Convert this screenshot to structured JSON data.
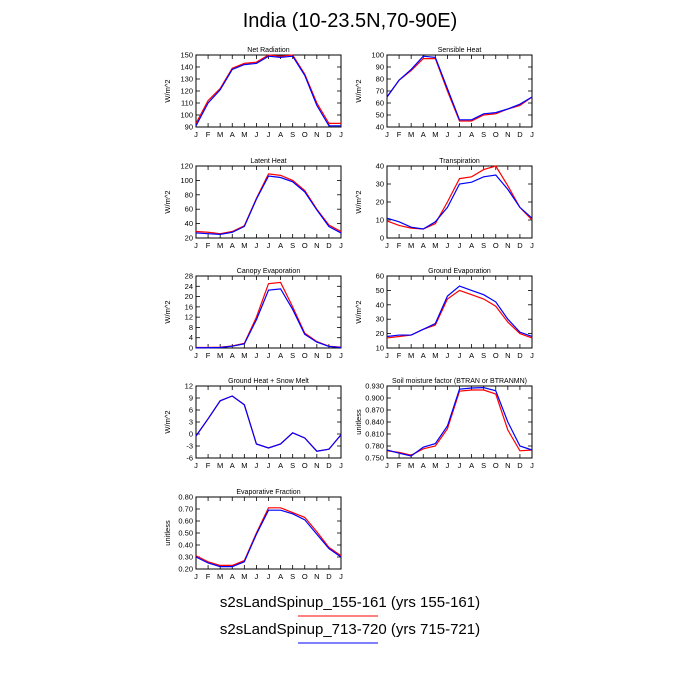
{
  "title": "India (10-23.5N,70-90E)",
  "colors": {
    "series1": "#ff0000",
    "series2": "#0000ff",
    "frame": "#000000"
  },
  "legend": [
    {
      "label": "s2sLandSpinup_155-161 (yrs 155-161)",
      "color": "#ff0000"
    },
    {
      "label": "s2sLandSpinup_713-720 (yrs 715-721)",
      "color": "#0000ff"
    }
  ],
  "chart_data": [
    {
      "type": "line",
      "title": "Net Radiation",
      "ylabel": "W/m^2",
      "x": [
        "J",
        "F",
        "M",
        "A",
        "M",
        "J",
        "J",
        "A",
        "S",
        "O",
        "N",
        "D",
        "J"
      ],
      "ylim": [
        90,
        150
      ],
      "yticks": [
        90,
        100,
        110,
        120,
        130,
        140,
        150
      ],
      "series": [
        {
          "values": [
            93,
            112,
            122,
            139,
            143,
            144,
            150,
            149,
            150,
            134,
            110,
            93,
            93
          ]
        },
        {
          "values": [
            91,
            110,
            121,
            138,
            142,
            143,
            149,
            148,
            149,
            133,
            108,
            91,
            91
          ]
        }
      ]
    },
    {
      "type": "line",
      "title": "Sensible Heat",
      "ylabel": "W/m^2",
      "x": [
        "J",
        "F",
        "M",
        "A",
        "M",
        "J",
        "J",
        "A",
        "S",
        "O",
        "N",
        "D",
        "J"
      ],
      "ylim": [
        40,
        100
      ],
      "yticks": [
        40,
        50,
        60,
        70,
        80,
        90,
        100
      ],
      "series": [
        {
          "values": [
            65,
            79,
            87,
            97,
            97,
            70,
            45,
            45,
            50,
            51,
            55,
            58,
            65
          ]
        },
        {
          "values": [
            65,
            79,
            88,
            99,
            98,
            72,
            46,
            46,
            51,
            52,
            55,
            59,
            65
          ]
        }
      ]
    },
    {
      "type": "line",
      "title": "Latent Heat",
      "ylabel": "W/m^2",
      "x": [
        "J",
        "F",
        "M",
        "A",
        "M",
        "J",
        "J",
        "A",
        "S",
        "O",
        "N",
        "D",
        "J"
      ],
      "ylim": [
        20,
        120
      ],
      "yticks": [
        20,
        40,
        60,
        80,
        100,
        120
      ],
      "series": [
        {
          "values": [
            29,
            28,
            26,
            29,
            37,
            75,
            109,
            107,
            100,
            86,
            60,
            38,
            29
          ]
        },
        {
          "values": [
            27,
            26,
            25,
            28,
            36,
            74,
            106,
            104,
            98,
            84,
            59,
            36,
            27
          ]
        }
      ]
    },
    {
      "type": "line",
      "title": "Transpiration",
      "ylabel": "W/m^2",
      "x": [
        "J",
        "F",
        "M",
        "A",
        "M",
        "J",
        "J",
        "A",
        "S",
        "O",
        "N",
        "D",
        "J"
      ],
      "ylim": [
        0,
        40
      ],
      "yticks": [
        0,
        10,
        20,
        30,
        40
      ],
      "series": [
        {
          "values": [
            9.5,
            7,
            5.5,
            5,
            8,
            20,
            33,
            34,
            38,
            40,
            29,
            17,
            10
          ]
        },
        {
          "values": [
            11,
            9,
            6,
            5,
            9,
            17,
            30,
            31,
            34,
            35,
            27,
            17,
            11
          ]
        }
      ]
    },
    {
      "type": "line",
      "title": "Canopy Evaporation",
      "ylabel": "W/m^2",
      "x": [
        "J",
        "F",
        "M",
        "A",
        "M",
        "J",
        "J",
        "A",
        "S",
        "O",
        "N",
        "D",
        "J"
      ],
      "ylim": [
        0,
        28
      ],
      "yticks": [
        0,
        4,
        8,
        12,
        16,
        20,
        24,
        28
      ],
      "series": [
        {
          "values": [
            0.2,
            0.2,
            0.3,
            0.8,
            1.8,
            12,
            25,
            25.5,
            16,
            5.8,
            2.5,
            0.7,
            0.3
          ]
        },
        {
          "values": [
            0.1,
            0.1,
            0.2,
            0.7,
            1.6,
            11,
            22.5,
            23,
            15,
            5.3,
            2.3,
            0.6,
            0.2
          ]
        }
      ]
    },
    {
      "type": "line",
      "title": "Ground Evaporation",
      "ylabel": "W/m^2",
      "x": [
        "J",
        "F",
        "M",
        "A",
        "M",
        "J",
        "J",
        "A",
        "S",
        "O",
        "N",
        "D",
        "J"
      ],
      "ylim": [
        10,
        60
      ],
      "yticks": [
        10,
        20,
        30,
        40,
        50,
        60
      ],
      "series": [
        {
          "values": [
            17,
            18,
            19,
            23,
            26,
            44,
            50,
            47,
            44,
            39,
            28,
            20,
            17
          ]
        },
        {
          "values": [
            18,
            19,
            19,
            23,
            27,
            46,
            53,
            50,
            47,
            42,
            30,
            21,
            18
          ]
        }
      ]
    },
    {
      "type": "line",
      "title": "Ground Heat + Snow Melt",
      "ylabel": "W/m^2",
      "x": [
        "J",
        "F",
        "M",
        "A",
        "M",
        "J",
        "J",
        "A",
        "S",
        "O",
        "N",
        "D",
        "J"
      ],
      "ylim": [
        -6,
        12
      ],
      "yticks": [
        -6,
        -3,
        0,
        3,
        6,
        9,
        12
      ],
      "series": [
        {
          "values": [
            -0.5,
            3.8,
            8.3,
            9.5,
            7.3,
            -2.5,
            -3.5,
            -2.5,
            0.3,
            -1,
            -4.3,
            -3.8,
            -0.2
          ]
        },
        {
          "values": [
            -0.5,
            3.8,
            8.3,
            9.5,
            7.3,
            -2.5,
            -3.5,
            -2.5,
            0.3,
            -1,
            -4.3,
            -3.8,
            -0.2
          ]
        }
      ]
    },
    {
      "type": "line",
      "title": "Soil moisture factor (BTRAN or BTRANMN)",
      "ylabel": "unitless",
      "x": [
        "J",
        "F",
        "M",
        "A",
        "M",
        "J",
        "J",
        "A",
        "S",
        "O",
        "N",
        "D",
        "J"
      ],
      "ylim": [
        0.75,
        0.93
      ],
      "yticks": [
        0.75,
        0.78,
        0.81,
        0.84,
        0.87,
        0.9,
        0.93
      ],
      "series": [
        {
          "values": [
            0.768,
            0.764,
            0.757,
            0.773,
            0.78,
            0.823,
            0.917,
            0.92,
            0.92,
            0.91,
            0.82,
            0.768,
            0.77
          ]
        },
        {
          "values": [
            0.77,
            0.762,
            0.755,
            0.777,
            0.786,
            0.83,
            0.922,
            0.925,
            0.926,
            0.918,
            0.84,
            0.78,
            0.77
          ]
        }
      ]
    },
    {
      "type": "line",
      "title": "Evaporative Fraction",
      "ylabel": "unitless",
      "x": [
        "J",
        "F",
        "M",
        "A",
        "M",
        "J",
        "J",
        "A",
        "S",
        "O",
        "N",
        "D",
        "J"
      ],
      "ylim": [
        0.2,
        0.8
      ],
      "yticks": [
        0.2,
        0.3,
        0.4,
        0.5,
        0.6,
        0.7,
        0.8
      ],
      "series": [
        {
          "values": [
            0.31,
            0.26,
            0.23,
            0.23,
            0.27,
            0.5,
            0.71,
            0.71,
            0.67,
            0.63,
            0.51,
            0.38,
            0.31
          ]
        },
        {
          "values": [
            0.3,
            0.25,
            0.22,
            0.22,
            0.26,
            0.49,
            0.69,
            0.69,
            0.66,
            0.61,
            0.49,
            0.37,
            0.3
          ]
        }
      ]
    }
  ]
}
